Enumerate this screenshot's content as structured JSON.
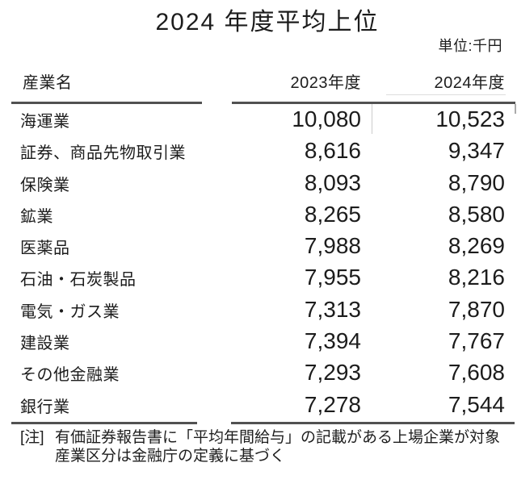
{
  "title": "2024 年度平均上位",
  "unit_label": "単位:千円",
  "table": {
    "headers": {
      "industry": "産業名",
      "fy2023": "2023年度",
      "fy2024": "2024年度"
    },
    "rows": [
      {
        "industry": "海運業",
        "fy2023": "10,080",
        "fy2024": "10,523"
      },
      {
        "industry": "証券、商品先物取引業",
        "fy2023": "8,616",
        "fy2024": "9,347"
      },
      {
        "industry": "保険業",
        "fy2023": "8,093",
        "fy2024": "8,790"
      },
      {
        "industry": "鉱業",
        "fy2023": "8,265",
        "fy2024": "8,580"
      },
      {
        "industry": "医薬品",
        "fy2023": "7,988",
        "fy2024": "8,269"
      },
      {
        "industry": "石油・石炭製品",
        "fy2023": "7,955",
        "fy2024": "8,216"
      },
      {
        "industry": "電気・ガス業",
        "fy2023": "7,313",
        "fy2024": "7,870"
      },
      {
        "industry": "建設業",
        "fy2023": "7,394",
        "fy2024": "7,767"
      },
      {
        "industry": "その他金融業",
        "fy2023": "7,293",
        "fy2024": "7,608"
      },
      {
        "industry": "銀行業",
        "fy2023": "7,278",
        "fy2024": "7,544"
      }
    ]
  },
  "footnote": {
    "marker": "[注]",
    "line1": "有価証券報告書に「平均年間給与」の記載がある上場企業が対象",
    "line2": "産業区分は金融庁の定義に基づく"
  },
  "colors": {
    "background": "#ffffff",
    "text": "#1c1c1c",
    "rule": "#515151",
    "artifact_light": "#cccccc"
  },
  "chart_data": {
    "type": "table",
    "title": "2024 年度平均上位",
    "unit": "千円",
    "columns": [
      "産業名",
      "2023年度",
      "2024年度"
    ],
    "categories": [
      "海運業",
      "証券、商品先物取引業",
      "保険業",
      "鉱業",
      "医薬品",
      "石油・石炭製品",
      "電気・ガス業",
      "建設業",
      "その他金融業",
      "銀行業"
    ],
    "series": [
      {
        "name": "2023年度",
        "values": [
          10080,
          8616,
          8093,
          8265,
          7988,
          7955,
          7313,
          7394,
          7293,
          7278
        ]
      },
      {
        "name": "2024年度",
        "values": [
          10523,
          9347,
          8790,
          8580,
          8269,
          8216,
          7870,
          7767,
          7608,
          7544
        ]
      }
    ],
    "notes": [
      "有価証券報告書に「平均年間給与」の記載がある上場企業が対象",
      "産業区分は金融庁の定義に基づく"
    ]
  }
}
